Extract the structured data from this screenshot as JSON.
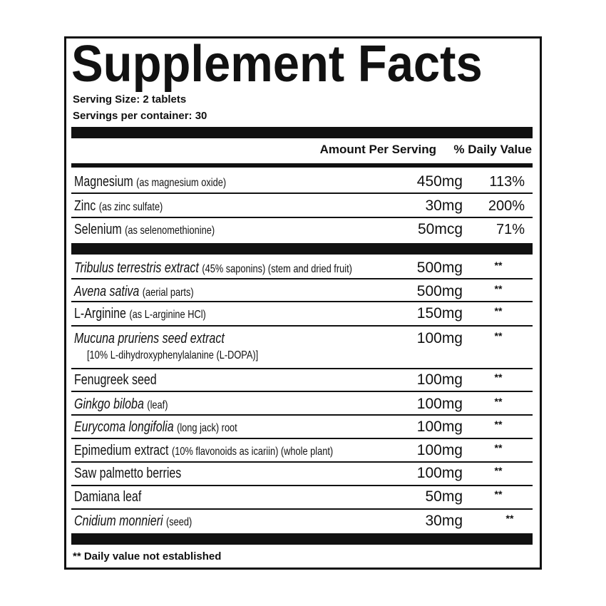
{
  "header": {
    "title": "Supplement Facts",
    "serving_size": "Serving Size: 2 tablets",
    "servings": "Servings per container: 30"
  },
  "columns": {
    "amount": "Amount Per Serving",
    "dv": "% Daily Value"
  },
  "minerals": [
    {
      "name": "Magnesium",
      "detail": "(as magnesium oxide)",
      "amount": "450mg",
      "dv": "113%"
    },
    {
      "name": "Zinc",
      "detail": "(as zinc sulfate)",
      "amount": "30mg",
      "dv": "200%"
    },
    {
      "name": "Selenium",
      "detail": "(as selenomethionine)",
      "amount": "50mcg",
      "dv": "71%"
    }
  ],
  "ingredients": [
    {
      "name": "Tribulus terrestris extract",
      "detail": "(45% saponins) (stem and dried fruit)",
      "amount": "500mg",
      "dv": "**"
    },
    {
      "name": "Avena sativa",
      "detail": "(aerial parts)",
      "amount": "500mg",
      "dv": "**"
    },
    {
      "name": "L-Arginine",
      "detail": "(as L-arginine HCl)",
      "amount": "150mg",
      "dv": "**"
    },
    {
      "name": "Mucuna pruriens seed extract",
      "detail": "[10% L-dihydroxyphenylalanine (L-DOPA)]",
      "amount": "100mg",
      "dv": "**"
    },
    {
      "name": "Fenugreek seed",
      "amount": "100mg",
      "dv": "**"
    },
    {
      "name": "Ginkgo biloba",
      "detail": "(leaf)",
      "amount": "100mg",
      "dv": "**"
    },
    {
      "name": "Eurycoma longifolia",
      "detail": "(long jack) root",
      "amount": "100mg",
      "dv": "**"
    },
    {
      "name": "Epimedium extract",
      "detail": "(10% flavonoids as icariin) (whole plant)",
      "amount": "100mg",
      "dv": "**"
    },
    {
      "name": "Saw palmetto berries",
      "amount": "100mg",
      "dv": "**"
    },
    {
      "name": "Damiana leaf",
      "amount": "50mg",
      "dv": "**"
    },
    {
      "name": "Cnidium monnieri",
      "detail": "(seed)",
      "amount": "30mg",
      "dv": "**"
    }
  ],
  "footnote": "** Daily value not established"
}
